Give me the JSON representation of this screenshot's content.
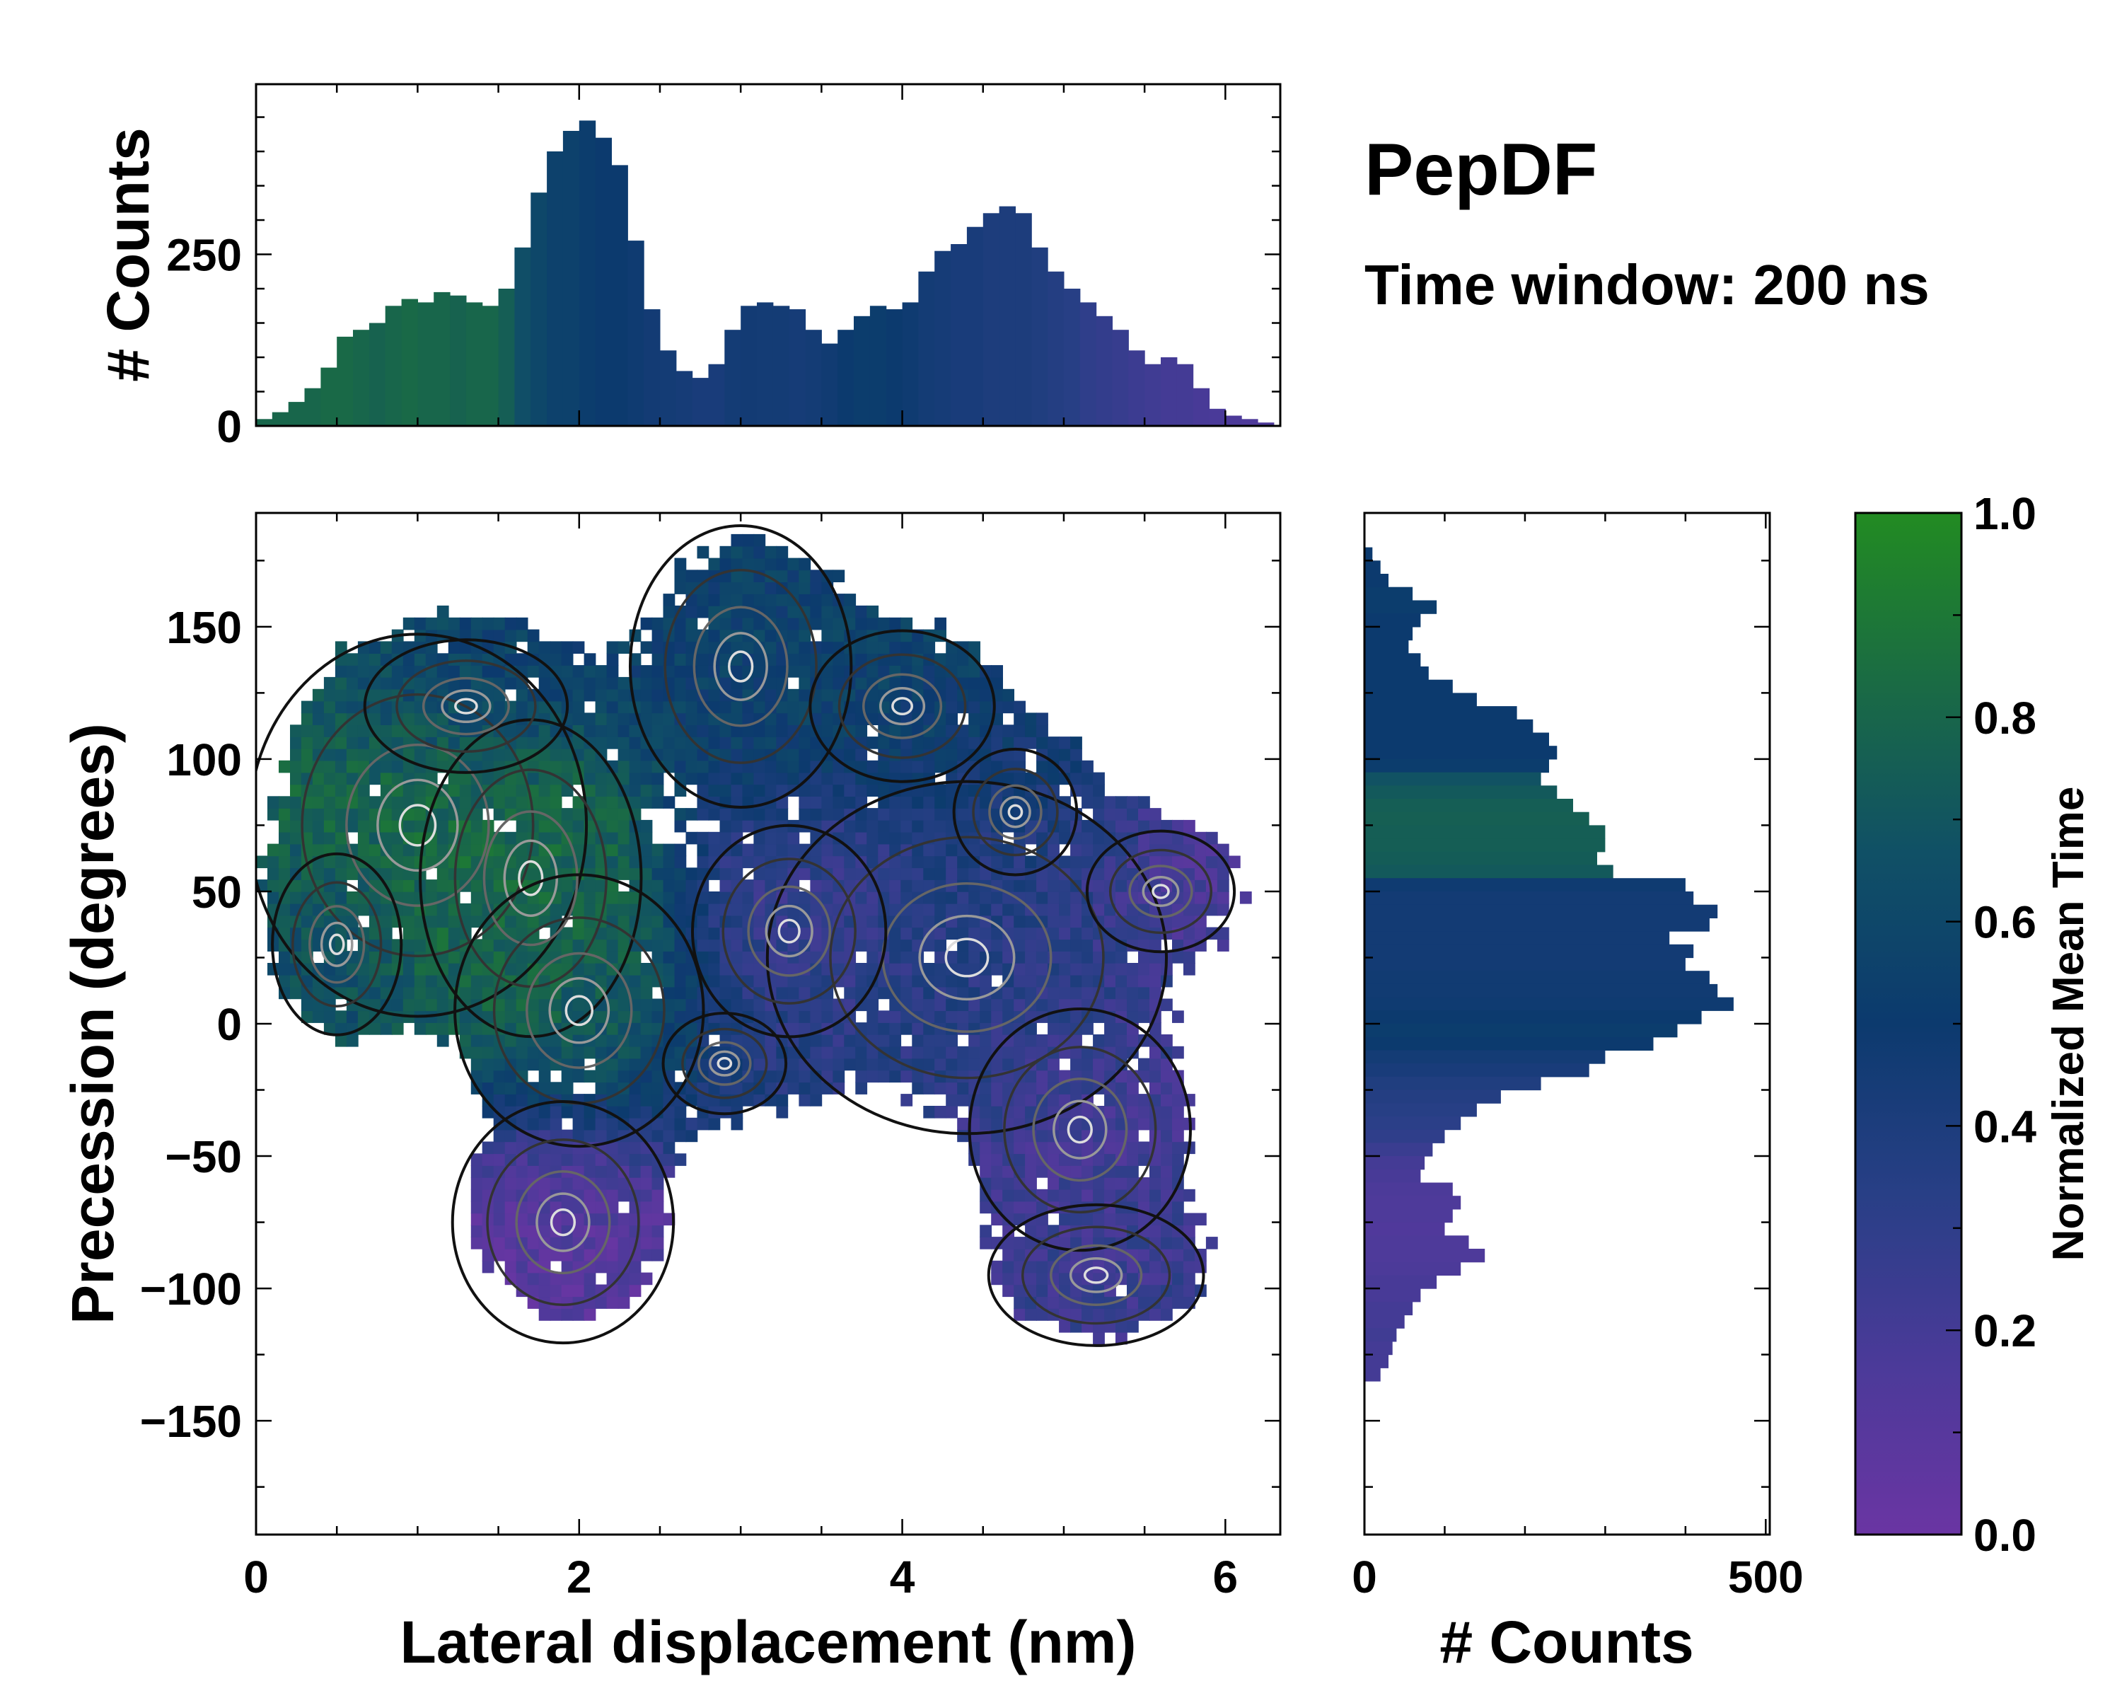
{
  "title": "PepDF",
  "subtitle": "Time window: 200 ns",
  "colormap": [
    "#6a35a3",
    "#4b3a99",
    "#283f86",
    "#0c3a6e",
    "#105066",
    "#1a6b44",
    "#228b22"
  ],
  "chart_data": [
    {
      "type": "heatmap",
      "name": "main",
      "xlabel": "Lateral displacement (nm)",
      "ylabel": "Precession (degrees)",
      "xlim": [
        0,
        6.34
      ],
      "ylim": [
        -193,
        193
      ],
      "xticks": [
        "0",
        "2",
        "4",
        "6"
      ],
      "xtick_values": [
        0,
        2,
        4,
        6
      ],
      "yticks": [
        "−150",
        "−100",
        "−50",
        "0",
        "50",
        "100",
        "150"
      ],
      "ytick_values": [
        -150,
        -100,
        -50,
        0,
        50,
        100,
        150
      ],
      "clusters": [
        {
          "x": 1.0,
          "y": 75,
          "sx": 0.55,
          "sy": 38,
          "w": 1.0,
          "t": 0.85
        },
        {
          "x": 1.7,
          "y": 55,
          "sx": 0.4,
          "sy": 35,
          "w": 0.9,
          "t": 0.8
        },
        {
          "x": 2.0,
          "y": 5,
          "sx": 0.45,
          "sy": 30,
          "w": 0.9,
          "t": 0.75
        },
        {
          "x": 0.5,
          "y": 30,
          "sx": 0.35,
          "sy": 30,
          "w": 0.6,
          "t": 0.6
        },
        {
          "x": 1.3,
          "y": 120,
          "sx": 0.55,
          "sy": 22,
          "w": 0.6,
          "t": 0.42
        },
        {
          "x": 1.9,
          "y": -75,
          "sx": 0.45,
          "sy": 30,
          "w": 0.8,
          "t": 0.1
        },
        {
          "x": 3.0,
          "y": 135,
          "sx": 0.45,
          "sy": 35,
          "w": 0.8,
          "t": 0.55
        },
        {
          "x": 4.0,
          "y": 120,
          "sx": 0.5,
          "sy": 25,
          "w": 0.6,
          "t": 0.55
        },
        {
          "x": 4.4,
          "y": 25,
          "sx": 0.65,
          "sy": 35,
          "w": 1.0,
          "t": 0.35
        },
        {
          "x": 3.3,
          "y": 35,
          "sx": 0.45,
          "sy": 30,
          "w": 0.7,
          "t": 0.25
        },
        {
          "x": 2.9,
          "y": -15,
          "sx": 0.4,
          "sy": 20,
          "w": 0.5,
          "t": 0.4
        },
        {
          "x": 5.6,
          "y": 50,
          "sx": 0.4,
          "sy": 20,
          "w": 0.6,
          "t": 0.15
        },
        {
          "x": 5.1,
          "y": -40,
          "sx": 0.45,
          "sy": 30,
          "w": 0.8,
          "t": 0.2
        },
        {
          "x": 5.2,
          "y": -95,
          "sx": 0.5,
          "sy": 20,
          "w": 0.7,
          "t": 0.25
        },
        {
          "x": 4.7,
          "y": 80,
          "sx": 0.4,
          "sy": 25,
          "w": 0.5,
          "t": 0.45
        }
      ]
    },
    {
      "type": "bar",
      "name": "top-histogram",
      "ylabel": "# Counts",
      "ylim": [
        0,
        498
      ],
      "yticks": [
        "0",
        "250"
      ],
      "ytick_values": [
        0,
        250
      ],
      "bin_width": 0.1,
      "x_start": 0.0,
      "values": [
        10,
        20,
        35,
        55,
        85,
        130,
        140,
        150,
        175,
        185,
        180,
        195,
        190,
        180,
        175,
        200,
        260,
        340,
        400,
        430,
        445,
        420,
        380,
        270,
        170,
        110,
        80,
        70,
        90,
        140,
        175,
        180,
        175,
        170,
        140,
        120,
        140,
        160,
        175,
        170,
        180,
        225,
        255,
        265,
        290,
        310,
        320,
        310,
        260,
        225,
        200,
        180,
        160,
        140,
        110,
        90,
        100,
        90,
        55,
        25,
        15,
        10,
        5
      ],
      "mean_time": [
        0.8,
        0.8,
        0.8,
        0.8,
        0.82,
        0.82,
        0.8,
        0.78,
        0.8,
        0.82,
        0.8,
        0.8,
        0.78,
        0.8,
        0.8,
        0.75,
        0.65,
        0.6,
        0.55,
        0.55,
        0.52,
        0.5,
        0.5,
        0.48,
        0.46,
        0.45,
        0.44,
        0.42,
        0.42,
        0.45,
        0.46,
        0.45,
        0.45,
        0.44,
        0.45,
        0.47,
        0.5,
        0.52,
        0.52,
        0.5,
        0.48,
        0.45,
        0.44,
        0.42,
        0.42,
        0.4,
        0.4,
        0.4,
        0.38,
        0.36,
        0.34,
        0.3,
        0.28,
        0.26,
        0.24,
        0.22,
        0.2,
        0.2,
        0.18,
        0.17,
        0.16,
        0.15,
        0.15
      ]
    },
    {
      "type": "bar",
      "name": "right-histogram",
      "xlabel": "# Counts",
      "xlim": [
        0,
        505
      ],
      "xticks": [
        "0",
        "500"
      ],
      "xtick_values": [
        0,
        500
      ],
      "bin_width": 5,
      "y_start": 180,
      "values": [
        10,
        20,
        30,
        60,
        90,
        70,
        60,
        55,
        70,
        80,
        110,
        140,
        190,
        210,
        230,
        240,
        230,
        220,
        240,
        260,
        280,
        300,
        300,
        290,
        310,
        400,
        410,
        440,
        430,
        380,
        410,
        400,
        430,
        440,
        460,
        420,
        390,
        360,
        300,
        280,
        220,
        170,
        140,
        120,
        100,
        85,
        75,
        70,
        110,
        120,
        110,
        100,
        130,
        150,
        120,
        90,
        70,
        60,
        50,
        40,
        35,
        30,
        20
      ],
      "mean_time": [
        0.5,
        0.5,
        0.5,
        0.52,
        0.52,
        0.5,
        0.5,
        0.5,
        0.5,
        0.5,
        0.5,
        0.5,
        0.5,
        0.5,
        0.5,
        0.5,
        0.52,
        0.68,
        0.72,
        0.75,
        0.76,
        0.75,
        0.75,
        0.74,
        0.72,
        0.48,
        0.46,
        0.46,
        0.46,
        0.46,
        0.46,
        0.46,
        0.47,
        0.47,
        0.48,
        0.5,
        0.52,
        0.5,
        0.45,
        0.42,
        0.38,
        0.36,
        0.34,
        0.32,
        0.3,
        0.25,
        0.2,
        0.18,
        0.16,
        0.15,
        0.15,
        0.14,
        0.15,
        0.15,
        0.16,
        0.18,
        0.18,
        0.2,
        0.2,
        0.22,
        0.2,
        0.2,
        0.2
      ]
    },
    {
      "type": "colorbar",
      "name": "colorbar",
      "label": "Normalized Mean Time",
      "range": [
        0,
        1
      ],
      "ticks": [
        "0.0",
        "0.2",
        "0.4",
        "0.6",
        "0.8",
        "1.0"
      ],
      "tick_values": [
        0,
        0.2,
        0.4,
        0.6,
        0.8,
        1.0
      ]
    }
  ]
}
